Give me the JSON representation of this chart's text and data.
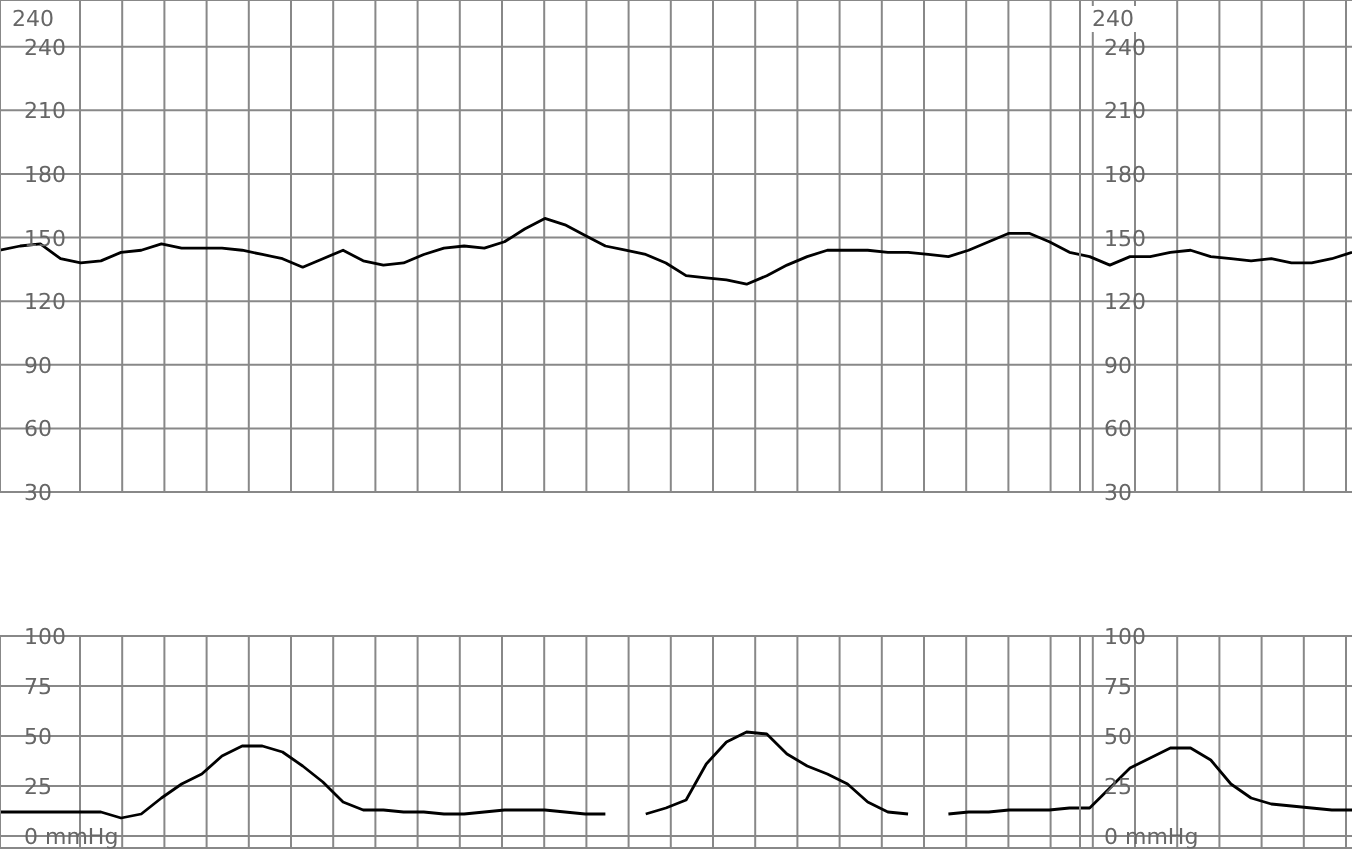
{
  "chart_data": [
    {
      "type": "line",
      "categories": [
        null,
        null,
        null,
        null,
        null,
        null,
        null,
        null,
        null,
        null,
        null,
        null,
        null,
        null,
        null,
        null,
        null,
        null,
        null,
        null,
        null,
        null,
        null,
        null,
        null,
        null,
        null,
        null,
        null,
        null,
        null,
        null,
        null,
        null,
        null,
        null,
        null,
        null,
        null,
        null,
        null,
        null,
        null,
        null,
        null,
        null,
        null,
        null,
        null,
        null,
        null,
        null,
        null,
        null,
        null,
        null,
        null,
        null,
        null,
        null,
        null,
        null,
        null,
        null,
        null,
        null,
        null,
        null
      ],
      "series": [
        {
          "color": "#000000",
          "values": [
            144,
            146,
            147,
            140,
            138,
            139,
            143,
            144,
            147,
            145,
            145,
            145,
            144,
            142,
            140,
            136,
            140,
            144,
            139,
            137,
            138,
            142,
            145,
            146,
            145,
            148,
            154,
            159,
            156,
            151,
            146,
            144,
            142,
            138,
            132,
            131,
            130,
            128,
            132,
            137,
            141,
            144,
            144,
            144,
            143,
            143,
            142,
            141,
            144,
            148,
            152,
            152,
            148,
            143,
            141,
            137,
            141,
            141,
            143,
            144,
            141,
            140,
            139,
            140,
            138,
            138,
            140,
            143
          ]
        }
      ],
      "ylim": [
        30,
        262
      ],
      "yticks": [
        30,
        60,
        90,
        120,
        150,
        180,
        210,
        240
      ],
      "y2lim": [
        30,
        262
      ],
      "y2ticks": [
        30,
        60,
        90,
        120,
        150,
        180,
        210,
        240
      ],
      "annotations": [
        "240"
      ],
      "grid": true,
      "tick_labels": "y",
      "marker": "none"
    },
    {
      "type": "line",
      "categories": [
        null,
        null,
        null,
        null,
        null,
        null,
        null,
        null,
        null,
        null,
        null,
        null,
        null,
        null,
        null,
        null,
        null,
        null,
        null,
        null,
        null,
        null,
        null,
        null,
        null,
        null,
        null,
        null,
        null,
        null,
        null,
        null,
        null,
        null,
        null,
        null,
        null,
        null,
        null,
        null,
        null,
        null,
        null,
        null,
        null,
        null,
        null,
        null,
        null,
        null,
        null,
        null,
        null,
        null,
        null,
        null,
        null,
        null,
        null,
        null,
        null,
        null,
        null,
        null,
        null,
        null,
        null,
        null
      ],
      "series": [
        {
          "color": "#000000",
          "values": [
            12,
            12,
            12,
            12,
            12,
            12,
            9,
            11,
            19,
            26,
            31,
            40,
            45,
            45,
            42,
            35,
            27,
            17,
            13,
            13,
            12,
            12,
            11,
            11,
            12,
            13,
            13,
            13,
            12,
            11,
            11,
            null,
            11,
            14,
            18,
            36,
            47,
            52,
            51,
            41,
            35,
            31,
            26,
            17,
            12,
            11,
            null,
            11,
            12,
            12,
            13,
            13,
            13,
            14,
            14,
            24,
            34,
            39,
            44,
            44,
            38,
            26,
            19,
            16,
            15,
            14,
            13,
            13
          ]
        }
      ],
      "ylim": [
        -6,
        100
      ],
      "yticks": [
        {
          "value": 0,
          "label": "0 mmHg"
        },
        25,
        50,
        75,
        100
      ],
      "y2lim": [
        -6,
        100
      ],
      "y2ticks": [
        {
          "value": 0,
          "label": "0 mmHg"
        },
        25,
        50,
        75,
        100
      ],
      "grid": true,
      "tick_labels": "y",
      "marker": "none"
    }
  ]
}
